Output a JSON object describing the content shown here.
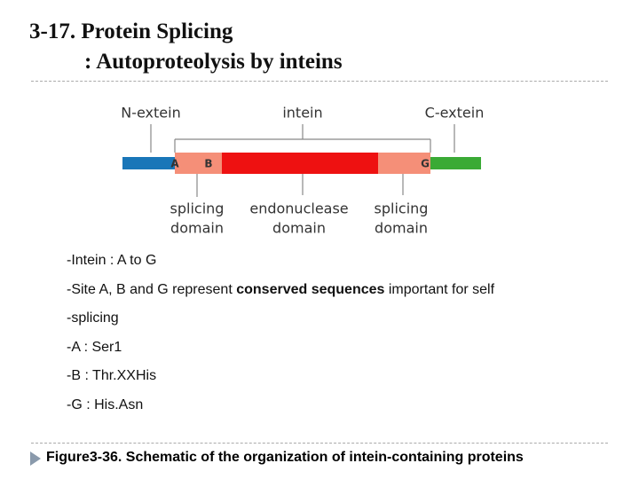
{
  "header": {
    "title": "3-17. Protein Splicing",
    "subtitle": ": Autoproteolysis by inteins"
  },
  "diagram": {
    "top_labels": [
      "N-extein",
      "intein",
      "C-extein"
    ],
    "sites": [
      "A",
      "B",
      "G"
    ],
    "domains": [
      [
        "splicing",
        "domain"
      ],
      [
        "endonuclease",
        "domain"
      ],
      [
        "splicing",
        "domain"
      ]
    ]
  },
  "notes": {
    "line1": "-Intein : A to G",
    "line2": {
      "before": "-Site A, B and G represent ",
      "bold": "conserved sequences",
      "after": " important for self"
    },
    "line3": "-splicing",
    "line4": "-A : Ser1",
    "line5": "-B : Thr.XXHis",
    "line6": "-G : His.Asn"
  },
  "caption": "Figure3-36. Schematic of the organization of intein-containing proteins"
}
